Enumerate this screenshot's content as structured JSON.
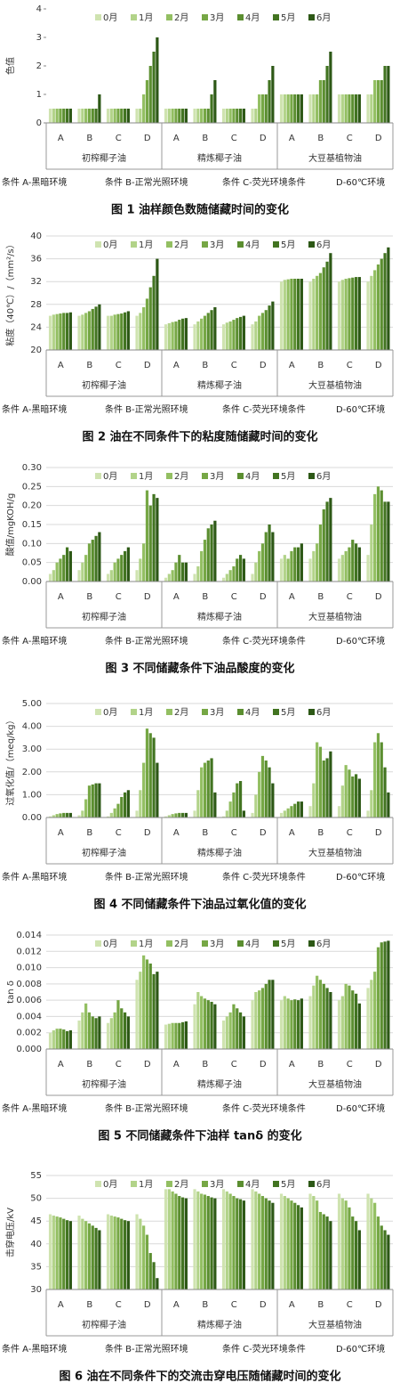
{
  "chart_data": [
    {
      "type": "bar",
      "title": "图 1  油样颜色数随储藏时间的变化",
      "ylabel": "色值",
      "grid": false,
      "categories": [
        "A",
        "B",
        "C",
        "D",
        "A",
        "B",
        "C",
        "D",
        "A",
        "B",
        "C",
        "D"
      ],
      "groups": [
        "初榨椰子油",
        "精炼椰子油",
        "大豆基植物油"
      ],
      "notes": [
        "条件 A-黑暗环境",
        "条件 B-正常光照环境",
        "条件 C-荧光环境条件",
        "D-60℃环境"
      ],
      "ylim": [
        0,
        4
      ],
      "yticks": [
        0,
        1,
        2,
        3,
        4
      ],
      "series": [
        {
          "name": "0月",
          "color": "#cfe3b0",
          "values": [
            0.5,
            0.5,
            0.5,
            0.5,
            0.5,
            0.5,
            0.5,
            0.5,
            1,
            1,
            1,
            1
          ]
        },
        {
          "name": "1月",
          "color": "#b2d389",
          "values": [
            0.5,
            0.5,
            0.5,
            0.5,
            0.5,
            0.5,
            0.5,
            0.5,
            1,
            1,
            1,
            1
          ]
        },
        {
          "name": "2月",
          "color": "#93bf62",
          "values": [
            0.5,
            0.5,
            0.5,
            1,
            0.5,
            0.5,
            0.5,
            1,
            1,
            1,
            1,
            1.5
          ]
        },
        {
          "name": "3月",
          "color": "#76a745",
          "values": [
            0.5,
            0.5,
            0.5,
            1.5,
            0.5,
            0.5,
            0.5,
            1,
            1,
            1.5,
            1,
            1.5
          ]
        },
        {
          "name": "4月",
          "color": "#5b8e30",
          "values": [
            0.5,
            0.5,
            0.5,
            2,
            0.5,
            0.5,
            0.5,
            1,
            1,
            1.5,
            1,
            1.5
          ]
        },
        {
          "name": "5月",
          "color": "#427421",
          "values": [
            0.5,
            0.5,
            0.5,
            2.5,
            0.5,
            1,
            0.5,
            1.5,
            1,
            2,
            1,
            2
          ]
        },
        {
          "name": "6月",
          "color": "#2d5816",
          "values": [
            0.5,
            1,
            0.5,
            3,
            0.5,
            1.5,
            0.5,
            2,
            1,
            2.5,
            1,
            2
          ]
        }
      ]
    },
    {
      "type": "bar",
      "title": "图 2  油在不同条件下的粘度随储藏时间的变化",
      "ylabel": "粘度（40℃）/（mm²/s）",
      "grid": true,
      "categories": [
        "A",
        "B",
        "C",
        "D",
        "A",
        "B",
        "C",
        "D",
        "A",
        "B",
        "C",
        "D"
      ],
      "groups": [
        "初榨椰子油",
        "精炼椰子油",
        "大豆基植物油"
      ],
      "notes": [
        "条件 A-黑暗环境",
        "条件 B-正常光照环境",
        "条件 C-荧光环境条件",
        "D-60℃环境"
      ],
      "ylim": [
        20,
        40
      ],
      "yticks": [
        20,
        24,
        28,
        32,
        36,
        40
      ],
      "series": [
        {
          "name": "0月",
          "color": "#cfe3b0",
          "values": [
            26,
            26,
            26,
            26,
            24.5,
            24.5,
            24.5,
            24.5,
            32,
            32,
            32,
            32
          ]
        },
        {
          "name": "1月",
          "color": "#b2d389",
          "values": [
            26.2,
            26.2,
            26,
            26.5,
            24.7,
            25,
            24.8,
            25,
            32.3,
            32.5,
            32.3,
            33
          ]
        },
        {
          "name": "2月",
          "color": "#93bf62",
          "values": [
            26.3,
            26.5,
            26.2,
            27.5,
            24.9,
            25.5,
            25,
            26,
            32.4,
            33,
            32.5,
            34
          ]
        },
        {
          "name": "3月",
          "color": "#76a745",
          "values": [
            26.4,
            26.8,
            26.3,
            29,
            25,
            26,
            25.3,
            26.5,
            32.5,
            33.5,
            32.6,
            35
          ]
        },
        {
          "name": "4月",
          "color": "#5b8e30",
          "values": [
            26.5,
            27.2,
            26.4,
            31,
            25.3,
            26.5,
            25.6,
            27,
            32.5,
            34.5,
            32.7,
            36
          ]
        },
        {
          "name": "5月",
          "color": "#427421",
          "values": [
            26.5,
            27.6,
            26.6,
            33,
            25.5,
            27,
            25.8,
            27.8,
            32.5,
            35.5,
            32.8,
            37
          ]
        },
        {
          "name": "6月",
          "color": "#2d5816",
          "values": [
            26.6,
            28,
            26.8,
            36,
            25.6,
            27.5,
            26,
            28.5,
            32.5,
            37,
            32.8,
            38
          ]
        }
      ]
    },
    {
      "type": "bar",
      "title": "图 3  不同储藏条件下油品酸度的变化",
      "ylabel": "酸值/mgKOH/g",
      "grid": true,
      "categories": [
        "A",
        "B",
        "C",
        "D",
        "A",
        "B",
        "C",
        "D",
        "A",
        "B",
        "C",
        "D"
      ],
      "groups": [
        "初榨椰子油",
        "精炼椰子油",
        "大豆基植物油"
      ],
      "notes": [
        "条件 A-黑暗环境",
        "条件 B-正常光照环境",
        "条件 C-荧光环境条件",
        "D-60℃环境"
      ],
      "ylim": [
        0,
        0.3
      ],
      "yticks": [
        {
          "value": 0,
          "label": "0.00"
        },
        0.05,
        {
          "value": 0.1,
          "label": "0.10"
        },
        0.15,
        {
          "value": 0.2,
          "label": "0.20"
        },
        0.25,
        {
          "value": 0.3,
          "label": "0.30"
        }
      ],
      "series": [
        {
          "name": "0月",
          "color": "#cfe3b0",
          "values": [
            0.02,
            0.03,
            0.02,
            0.03,
            0.01,
            0.02,
            0.01,
            0.02,
            0.06,
            0.06,
            0.06,
            0.07
          ]
        },
        {
          "name": "1月",
          "color": "#b2d389",
          "values": [
            0.03,
            0.05,
            0.03,
            0.06,
            0.02,
            0.04,
            0.02,
            0.05,
            0.07,
            0.08,
            0.07,
            0.15
          ]
        },
        {
          "name": "2月",
          "color": "#93bf62",
          "values": [
            0.05,
            0.07,
            0.05,
            0.1,
            0.03,
            0.08,
            0.03,
            0.08,
            0.06,
            0.1,
            0.08,
            0.23
          ]
        },
        {
          "name": "3月",
          "color": "#76a745",
          "values": [
            0.06,
            0.1,
            0.06,
            0.24,
            0.05,
            0.11,
            0.04,
            0.1,
            0.08,
            0.15,
            0.09,
            0.25
          ]
        },
        {
          "name": "4月",
          "color": "#5b8e30",
          "values": [
            0.07,
            0.11,
            0.07,
            0.2,
            0.07,
            0.14,
            0.06,
            0.13,
            0.09,
            0.19,
            0.11,
            0.24
          ]
        },
        {
          "name": "5月",
          "color": "#427421",
          "values": [
            0.09,
            0.12,
            0.08,
            0.23,
            0.05,
            0.15,
            0.07,
            0.15,
            0.09,
            0.21,
            0.1,
            0.21
          ]
        },
        {
          "name": "6月",
          "color": "#2d5816",
          "values": [
            0.08,
            0.13,
            0.09,
            0.22,
            0.05,
            0.16,
            0.06,
            0.13,
            0.1,
            0.22,
            0.09,
            0.21
          ]
        }
      ]
    },
    {
      "type": "bar",
      "title": "图 4  不同储藏条件下油品过氧化值的变化",
      "ylabel": "过氧化值/（meq/kg）",
      "grid": true,
      "categories": [
        "A",
        "B",
        "C",
        "D",
        "A",
        "B",
        "C",
        "D",
        "A",
        "B",
        "C",
        "D"
      ],
      "groups": [
        "初榨椰子油",
        "精炼椰子油",
        "大豆基植物油"
      ],
      "notes": [
        "条件 A-黑暗环境",
        "条件 B-正常光照环境",
        "条件 C-荧光环境条件",
        "D-60℃环境"
      ],
      "ylim": [
        0,
        5
      ],
      "yticks": [
        {
          "value": 0,
          "label": "0.00"
        },
        {
          "value": 1,
          "label": "1.00"
        },
        {
          "value": 2,
          "label": "2.00"
        },
        {
          "value": 3,
          "label": "3.00"
        },
        {
          "value": 4,
          "label": "4.00"
        },
        {
          "value": 5,
          "label": "5.00"
        }
      ],
      "series": [
        {
          "name": "0月",
          "color": "#cfe3b0",
          "values": [
            0.05,
            0.1,
            0.05,
            0.3,
            0.05,
            0.3,
            0.05,
            0.2,
            0.2,
            0.5,
            0.5,
            0.3
          ]
        },
        {
          "name": "1月",
          "color": "#b2d389",
          "values": [
            0.1,
            0.3,
            0.2,
            1.2,
            0.1,
            1.2,
            0.3,
            1,
            0.3,
            1.5,
            1.4,
            1.2
          ]
        },
        {
          "name": "2月",
          "color": "#93bf62",
          "values": [
            0.15,
            0.8,
            0.4,
            2.4,
            0.15,
            2.2,
            0.7,
            2,
            0.4,
            3.3,
            2.3,
            3.3
          ]
        },
        {
          "name": "3月",
          "color": "#76a745",
          "values": [
            0.18,
            1.4,
            0.6,
            3.9,
            0.18,
            2.4,
            1.1,
            2.7,
            0.5,
            3.1,
            2.1,
            3.7
          ]
        },
        {
          "name": "4月",
          "color": "#5b8e30",
          "values": [
            0.2,
            1.45,
            0.9,
            3.7,
            0.2,
            2.5,
            1.5,
            2.5,
            0.6,
            2.5,
            1.8,
            3.3
          ]
        },
        {
          "name": "5月",
          "color": "#427421",
          "values": [
            0.2,
            1.5,
            1.1,
            3.5,
            0.2,
            2.6,
            1.6,
            2.2,
            0.7,
            2.6,
            1.9,
            2.2
          ]
        },
        {
          "name": "6月",
          "color": "#2d5816",
          "values": [
            0.2,
            1.5,
            1.2,
            2.4,
            0.2,
            1.1,
            0.3,
            1.5,
            0.7,
            2.9,
            1.7,
            1.1
          ]
        }
      ]
    },
    {
      "type": "bar",
      "title": "图 5  不同储藏条件下油样 tanδ 的变化",
      "ylabel": "tan δ",
      "grid": true,
      "categories": [
        "A",
        "B",
        "C",
        "D",
        "A",
        "B",
        "C",
        "D",
        "A",
        "B",
        "C",
        "D"
      ],
      "groups": [
        "初榨椰子油",
        "精炼椰子油",
        "大豆基植物油"
      ],
      "notes": [
        "条件 A-黑暗环境",
        "条件 B-正常光照环境",
        "条件 C-荧光环境条件",
        "D-60℃环境"
      ],
      "ylim": [
        0,
        0.014
      ],
      "yticks": [
        {
          "value": 0,
          "label": "0.000"
        },
        0.002,
        0.004,
        0.006,
        0.008,
        {
          "value": 0.01,
          "label": "0.010"
        },
        0.012,
        0.014
      ],
      "series": [
        {
          "name": "0月",
          "color": "#cfe3b0",
          "values": [
            0.002,
            0.0035,
            0.0032,
            0.0085,
            0.003,
            0.0055,
            0.0035,
            0.006,
            0.006,
            0.0065,
            0.006,
            0.0075
          ]
        },
        {
          "name": "1月",
          "color": "#b2d389",
          "values": [
            0.0023,
            0.0045,
            0.0038,
            0.0095,
            0.0031,
            0.007,
            0.004,
            0.007,
            0.0065,
            0.0078,
            0.0065,
            0.0085
          ]
        },
        {
          "name": "2月",
          "color": "#93bf62",
          "values": [
            0.0025,
            0.0056,
            0.0045,
            0.0115,
            0.0032,
            0.0065,
            0.0045,
            0.0072,
            0.0062,
            0.009,
            0.008,
            0.0095
          ]
        },
        {
          "name": "3月",
          "color": "#76a745",
          "values": [
            0.0025,
            0.0045,
            0.006,
            0.011,
            0.0032,
            0.0062,
            0.0055,
            0.0075,
            0.006,
            0.0085,
            0.0078,
            0.0125
          ]
        },
        {
          "name": "4月",
          "color": "#5b8e30",
          "values": [
            0.0024,
            0.004,
            0.005,
            0.0105,
            0.0032,
            0.006,
            0.005,
            0.008,
            0.0061,
            0.008,
            0.0072,
            0.0131
          ]
        },
        {
          "name": "5月",
          "color": "#427421",
          "values": [
            0.0022,
            0.0038,
            0.0045,
            0.0092,
            0.0033,
            0.0058,
            0.0045,
            0.0085,
            0.006,
            0.0075,
            0.0068,
            0.0132
          ]
        },
        {
          "name": "6月",
          "color": "#2d5816",
          "values": [
            0.0023,
            0.004,
            0.004,
            0.0095,
            0.0034,
            0.0055,
            0.004,
            0.0085,
            0.0062,
            0.007,
            0.0056,
            0.0133
          ]
        }
      ]
    },
    {
      "type": "bar",
      "title": "图 6  油在不同条件下的交流击穿电压随储藏时间的变化",
      "ylabel": "击穿电压/kV",
      "grid": true,
      "categories": [
        "A",
        "B",
        "C",
        "D",
        "A",
        "B",
        "C",
        "D",
        "A",
        "B",
        "C",
        "D"
      ],
      "groups": [
        "初榨椰子油",
        "精炼椰子油",
        "大豆基植物油"
      ],
      "notes": [
        "条件 A-黑暗环境",
        "条件 B-正常光照环境",
        "条件 C-荧光环境条件",
        "D-60℃环境"
      ],
      "ylim": [
        30,
        55
      ],
      "yticks": [
        30,
        35,
        40,
        45,
        50,
        55
      ],
      "series": [
        {
          "name": "0月",
          "color": "#cfe3b0",
          "values": [
            46.5,
            46.2,
            46.5,
            46.5,
            52,
            52,
            52,
            52,
            51,
            51,
            51,
            51
          ]
        },
        {
          "name": "1月",
          "color": "#b2d389",
          "values": [
            46.2,
            45.5,
            46.2,
            45.5,
            52,
            51.5,
            51.5,
            51.5,
            50.5,
            50.5,
            50,
            50
          ]
        },
        {
          "name": "2月",
          "color": "#93bf62",
          "values": [
            46,
            45,
            46,
            44,
            51.5,
            51,
            51,
            51,
            50,
            49.5,
            49.5,
            49
          ]
        },
        {
          "name": "3月",
          "color": "#76a745",
          "values": [
            45.8,
            44.5,
            45.8,
            42,
            51,
            50.8,
            50.5,
            50.5,
            49.5,
            47,
            48,
            46
          ]
        },
        {
          "name": "4月",
          "color": "#5b8e30",
          "values": [
            45.5,
            44,
            45.5,
            38,
            50.5,
            50.5,
            50,
            50,
            49,
            46.5,
            46,
            44
          ]
        },
        {
          "name": "5月",
          "color": "#427421",
          "values": [
            45.2,
            43.5,
            45.2,
            36,
            50.2,
            50.2,
            49.8,
            49.5,
            48.5,
            46,
            45,
            43
          ]
        },
        {
          "name": "6月",
          "color": "#2d5816",
          "values": [
            45,
            43,
            45,
            32.5,
            50,
            50,
            49.5,
            49,
            48,
            45,
            43,
            42
          ]
        }
      ]
    }
  ]
}
